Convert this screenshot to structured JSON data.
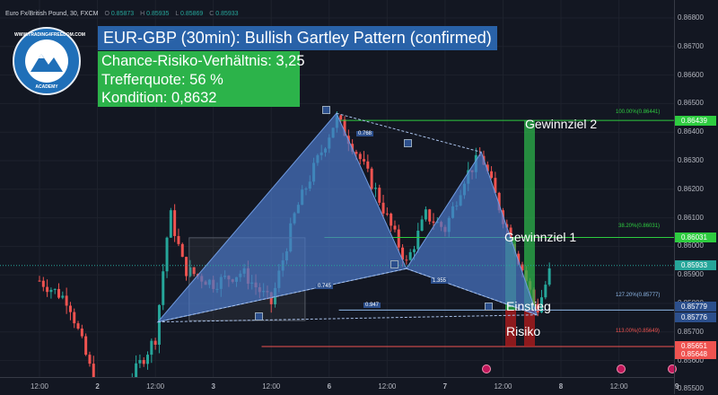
{
  "symbol_info": {
    "symbol": "Euro Fx/British Pound, 30, FXCM",
    "o_key": "O",
    "o_val": "0.85873",
    "h_key": "H",
    "h_val": "0.85935",
    "l_key": "L",
    "l_val": "0.85869",
    "c_key": "C",
    "c_val": "0.85933"
  },
  "overlay": {
    "title": "EUR-GBP (30min): Bullish Gartley Pattern (confirmed)",
    "stats": [
      "Chance-Risiko-Verhältnis: 3,25",
      "Trefferquote: 56 %",
      "Kondition: 0,8632"
    ],
    "labels": {
      "target2": "Gewinnziel 2",
      "target1": "Gewinnziel 1",
      "entry": "Einstieg",
      "risk": "Risiko"
    }
  },
  "logo": {
    "top_text": "WWW.TRADING4FREEDOM.COM",
    "bottom_text": "ACADEMY"
  },
  "fib_levels": [
    {
      "label": "100.00%(0.86441)",
      "price": 0.86441,
      "color": "#2ecc40"
    },
    {
      "label": "38.20%(0.86031)",
      "price": 0.86031,
      "color": "#2ecc40"
    },
    {
      "label": "127.20%(0.85777)",
      "price": 0.85777,
      "color": "#8fb8e8"
    },
    {
      "label": "113.00%(0.85649)",
      "price": 0.85649,
      "color": "#ef5350"
    }
  ],
  "pattern": {
    "points": [
      {
        "name": "X",
        "t": 24.5,
        "p": 0.85735
      },
      {
        "name": "A",
        "t": 61.5,
        "p": 0.86466
      },
      {
        "name": "B",
        "t": 76,
        "p": 0.85922
      },
      {
        "name": "C",
        "t": 91.5,
        "p": 0.8633
      },
      {
        "name": "D",
        "t": 103,
        "p": 0.8576
      }
    ],
    "ratios": [
      "0.768",
      "0.745",
      "0.947",
      "1.355"
    ],
    "fill_color": "#4a78c7"
  },
  "price_axis": {
    "ticks": [
      "0.86800",
      "0.86700",
      "0.86600",
      "0.86500",
      "0.86400",
      "0.86300",
      "0.86200",
      "0.86100",
      "0.86000",
      "0.85900",
      "0.85800",
      "0.85700",
      "0.85600",
      "0.85500"
    ],
    "tags": [
      {
        "text": "0.86439",
        "price": 0.86439,
        "color": "#2ecc40"
      },
      {
        "text": "0.86031",
        "price": 0.86031,
        "color": "#2ecc40"
      },
      {
        "text": "0.85933",
        "price": 0.85933,
        "color": "#26a69a"
      },
      {
        "text": "0.85779",
        "price": 0.85779,
        "color": "#2c4f8c"
      },
      {
        "text": "0.85776",
        "price": 0.85776,
        "color": "#2c4f8c"
      },
      {
        "text": "0.85651",
        "price": 0.85651,
        "color": "#ef5350"
      },
      {
        "text": "0.85648",
        "price": 0.85648,
        "color": "#ef5350"
      }
    ]
  },
  "time_axis": {
    "labels": [
      {
        "text": "12:00",
        "t": 0
      },
      {
        "text": "2",
        "t": 12
      },
      {
        "text": "12:00",
        "t": 24
      },
      {
        "text": "3",
        "t": 36
      },
      {
        "text": "12:00",
        "t": 48
      },
      {
        "text": "6",
        "t": 60
      },
      {
        "text": "12:00",
        "t": 72
      },
      {
        "text": "7",
        "t": 84
      },
      {
        "text": "12:00",
        "t": 96
      },
      {
        "text": "8",
        "t": 108
      },
      {
        "text": "12:00",
        "t": 120
      },
      {
        "text": "9",
        "t": 132
      }
    ]
  },
  "colors": {
    "bull": "#26a69a",
    "bear": "#ef5350",
    "grid": "#1e222d",
    "target": "#2cb34a",
    "risk": "#b71c1c"
  }
}
